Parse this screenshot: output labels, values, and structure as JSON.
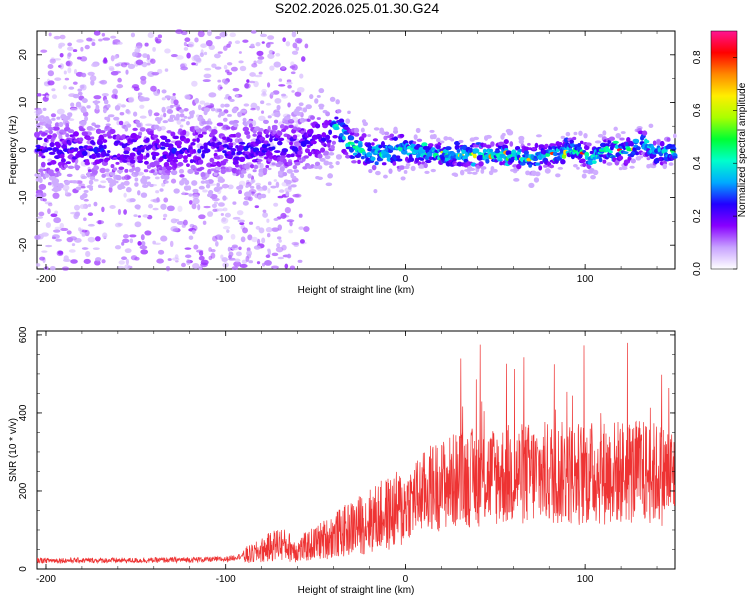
{
  "title": "S202.2026.025.01.30.G24",
  "colors": {
    "snr_line": "#ee3333",
    "colormap": [
      "#ffffff",
      "#c8a2ff",
      "#8800ff",
      "#2200ff",
      "#00aaff",
      "#00ffcc",
      "#00ff33",
      "#aaff00",
      "#ffee00",
      "#ff8800",
      "#ff0000",
      "#ff1493"
    ]
  },
  "chart_data": [
    {
      "type": "heatmap",
      "xlabel": "Height of straight line (km)",
      "ylabel": "Frequency (Hz)",
      "xlim": [
        -205,
        150
      ],
      "ylim": [
        -25,
        25
      ],
      "x_ticks": [
        -200,
        -100,
        0,
        100
      ],
      "y_ticks": [
        -20,
        -10,
        0,
        10,
        20
      ],
      "colorbar": {
        "label": "Normalized spectral amplitude",
        "range": [
          0.0,
          0.9
        ],
        "ticks": [
          0.0,
          0.2,
          0.4,
          0.6,
          0.8
        ]
      },
      "ridge": {
        "description_points": [
          [
            -205,
            0
          ],
          [
            -100,
            0
          ],
          [
            -60,
            1
          ],
          [
            -45,
            3
          ],
          [
            -38,
            5
          ],
          [
            -30,
            1
          ],
          [
            -20,
            -1
          ],
          [
            0,
            0
          ],
          [
            20,
            -1
          ],
          [
            40,
            -1
          ],
          [
            60,
            -1
          ],
          [
            70,
            -2
          ],
          [
            80,
            -1
          ],
          [
            95,
            0
          ],
          [
            105,
            -2
          ],
          [
            110,
            0
          ],
          [
            125,
            0
          ],
          [
            132,
            2
          ],
          [
            140,
            -1
          ],
          [
            150,
            0
          ]
        ]
      }
    },
    {
      "type": "line",
      "xlabel": "Height of straight line (km)",
      "ylabel": "SNR (10 * v/v)",
      "xlim": [
        -205,
        150
      ],
      "ylim": [
        0,
        610
      ],
      "x_ticks": [
        -200,
        -100,
        0,
        100
      ],
      "y_ticks": [
        0,
        200,
        400,
        600
      ],
      "series": [
        {
          "envelope_points": [
            [
              -205,
              22
            ],
            [
              -150,
              22
            ],
            [
              -100,
              25
            ],
            [
              -85,
              40
            ],
            [
              -70,
              70
            ],
            [
              -60,
              50
            ],
            [
              -45,
              80
            ],
            [
              -30,
              110
            ],
            [
              -15,
              140
            ],
            [
              0,
              165
            ],
            [
              15,
              210
            ],
            [
              30,
              230
            ],
            [
              50,
              240
            ],
            [
              75,
              245
            ],
            [
              100,
              245
            ],
            [
              125,
              250
            ],
            [
              150,
              240
            ]
          ]
        }
      ]
    }
  ]
}
